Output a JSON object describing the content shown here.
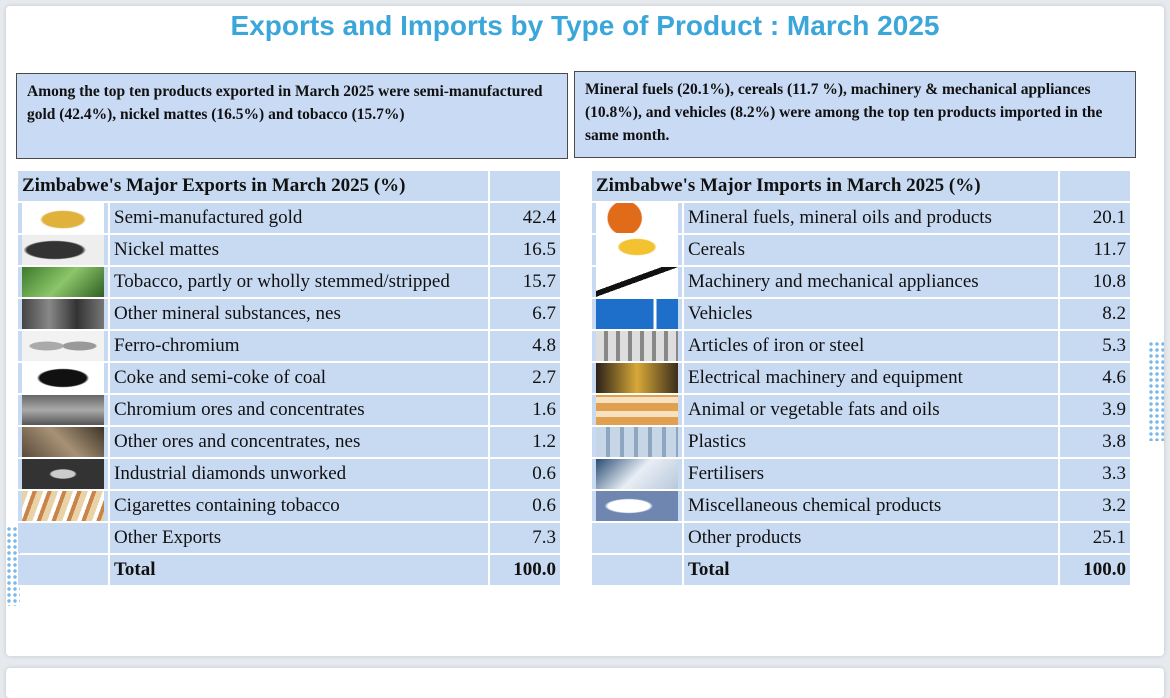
{
  "title": "Exports and Imports by Type of Product : March 2025",
  "summary_exports": "Among the top ten products exported in March 2025 were semi-manufactured gold (42.4%), nickel mattes (16.5%) and tobacco (15.7%)",
  "summary_imports": "Mineral fuels (20.1%), cereals (11.7 %), machinery & mechanical appliances (10.8%), and vehicles (8.2%) were among the top ten products imported in the same month.",
  "exports": {
    "header": "Zimbabwe's Major Exports in March 2025 (%)",
    "rows": [
      {
        "icon": "gold-nugget-icon",
        "label": "Semi-manufactured gold",
        "value": "42.4"
      },
      {
        "icon": "nickel-icon",
        "label": "Nickel mattes",
        "value": "16.5"
      },
      {
        "icon": "tobacco-leaf-icon",
        "label": "Tobacco, partly or wholly stemmed/stripped",
        "value": "15.7"
      },
      {
        "icon": "mineral-icon",
        "label": "Other mineral substances, nes",
        "value": "6.7"
      },
      {
        "icon": "ferro-chromium-icon",
        "label": "Ferro-chromium",
        "value": "4.8"
      },
      {
        "icon": "coke-icon",
        "label": "Coke and semi-coke of coal",
        "value": "2.7"
      },
      {
        "icon": "chromium-ore-icon",
        "label": "Chromium ores and concentrates",
        "value": "1.6"
      },
      {
        "icon": "ore-icon",
        "label": "Other ores and concentrates, nes",
        "value": "1.2"
      },
      {
        "icon": "diamond-icon",
        "label": "Industrial diamonds unworked",
        "value": "0.6"
      },
      {
        "icon": "cigarette-icon",
        "label": "Cigarettes containing tobacco",
        "value": "0.6"
      },
      {
        "icon": "",
        "label": "Other Exports",
        "value": "7.3"
      }
    ],
    "total_label": "Total",
    "total_value": "100.0"
  },
  "imports": {
    "header": "Zimbabwe's Major Imports in March 2025 (%)",
    "rows": [
      {
        "icon": "fuel-pump-icon",
        "label": "Mineral fuels, mineral oils and products",
        "value": "20.1"
      },
      {
        "icon": "cereal-icon",
        "label": "Cereals",
        "value": "11.7"
      },
      {
        "icon": "wrench-icon",
        "label": "Machinery and mechanical appliances",
        "value": "10.8"
      },
      {
        "icon": "truck-icon",
        "label": "Vehicles",
        "value": "8.2"
      },
      {
        "icon": "steel-pipes-icon",
        "label": "Articles of iron or steel",
        "value": "5.3"
      },
      {
        "icon": "electrical-icon",
        "label": "Electrical machinery and equipment",
        "value": "4.6"
      },
      {
        "icon": "oil-fats-icon",
        "label": "Animal or vegetable fats and oils",
        "value": "3.9"
      },
      {
        "icon": "plastics-icon",
        "label": "Plastics",
        "value": "3.8"
      },
      {
        "icon": "fertiliser-icon",
        "label": "Fertilisers",
        "value": "3.3"
      },
      {
        "icon": "chemical-icon",
        "label": "Miscellaneous chemical products",
        "value": "3.2"
      },
      {
        "icon": "",
        "label": "Other products",
        "value": "25.1"
      }
    ],
    "total_label": "Total",
    "total_value": "100.0"
  }
}
